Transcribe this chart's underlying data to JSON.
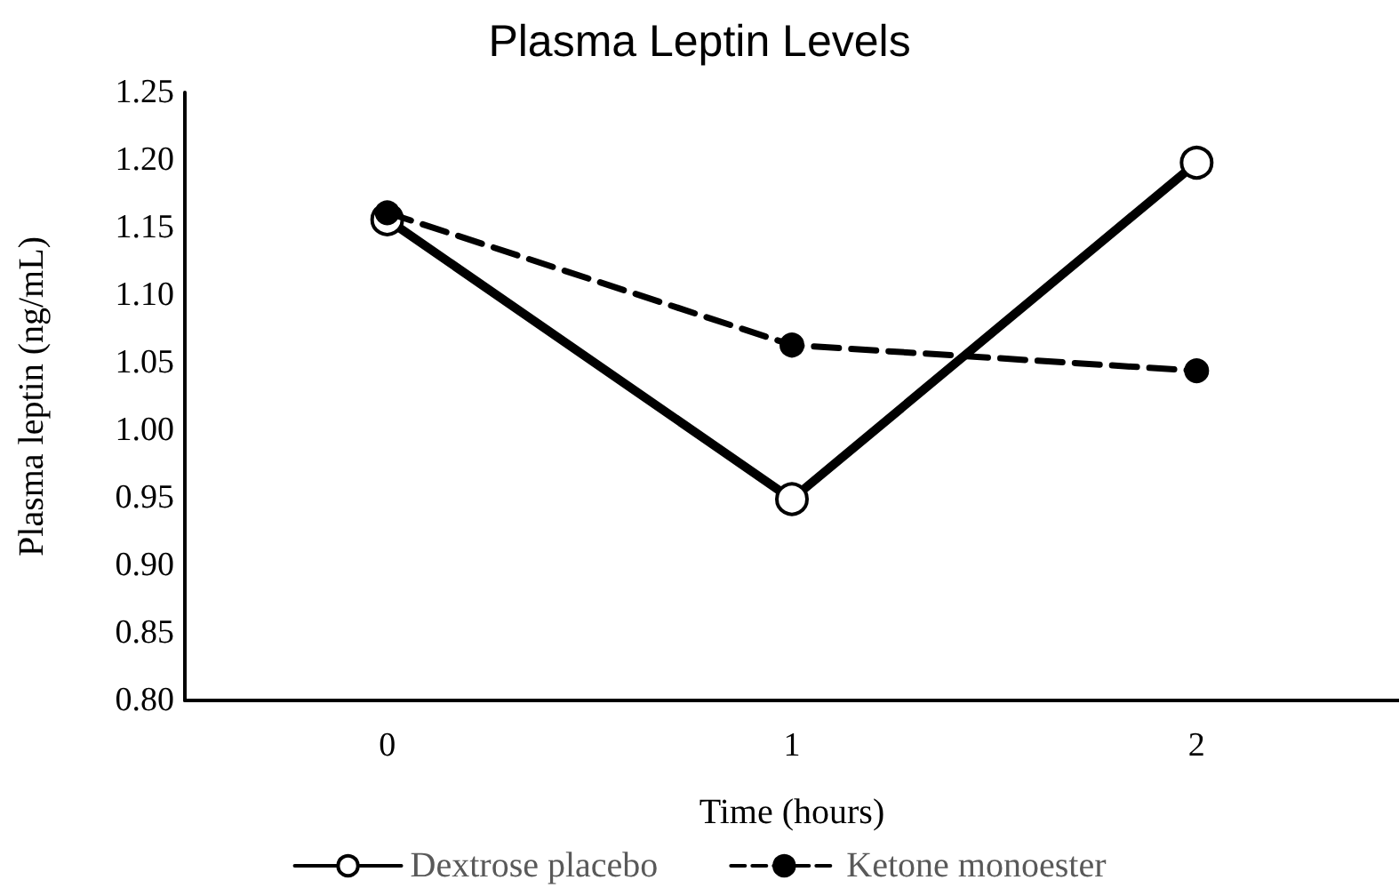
{
  "chart_data": {
    "type": "line",
    "title": "Plasma Leptin Levels",
    "xlabel": "Time (hours)",
    "ylabel": "Plasma leptin (ng/mL)",
    "categories": [
      "0",
      "1",
      "2"
    ],
    "series": [
      {
        "name": "Dextrose placebo",
        "color": "#000000",
        "line_style": "solid",
        "values": [
          1.156,
          0.949,
          1.198
        ]
      },
      {
        "name": "Ketone monoester",
        "color": "#000000",
        "line_style": "dashed",
        "values": [
          1.161,
          1.063,
          1.044
        ]
      }
    ],
    "ylim": [
      0.8,
      1.25
    ],
    "yticks": [
      {
        "value": 0.8,
        "label": "0.80"
      },
      0.85,
      {
        "value": 0.9,
        "label": "0.90"
      },
      0.95,
      {
        "value": 1.0,
        "label": "1.00"
      },
      1.05,
      {
        "value": 1.1,
        "label": "1.10"
      },
      1.15,
      {
        "value": 1.2,
        "label": "1.20"
      },
      1.25
    ],
    "marker": "circle",
    "grid": false,
    "legend": "bottom"
  }
}
